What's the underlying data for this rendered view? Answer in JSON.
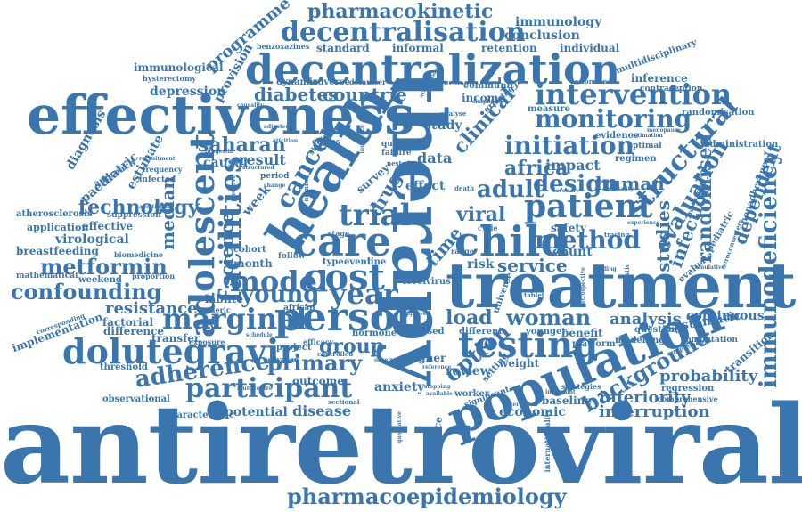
{
  "color": "#3a76ad",
  "words": {
    "antiretroviral": "antiretroviral",
    "therapy": "therapy",
    "treatment": "treatment",
    "effectiveness": "effectiveness",
    "decentralization": "decentralization",
    "health": "health",
    "population": "population",
    "pharmacoepidemiology": "pharmacoepidemiology",
    "dolutegravir": "dolutegravir",
    "person": "person",
    "care": "care",
    "child": "child",
    "patient": "patient",
    "intervention": "intervention",
    "monitoring": "monitoring",
    "adolescent": "adolescent",
    "facilities": "facilities",
    "testing": "testing",
    "immunodeficiency": "immunodeficiency",
    "decentralisation": "decentralisation",
    "pharmacokinetic": "pharmacokinetic",
    "initiation": "initiation",
    "marginal": "marginal",
    "model": "model",
    "cost": "cost",
    "young": "young",
    "year": "year",
    "trial": "trial",
    "participant": "participant",
    "adherence": "adherence",
    "confounding": "confounding",
    "metformin": "metformin",
    "structural": "structural",
    "evaluation": "evaluation",
    "background": "background",
    "woman": "woman",
    "method": "method",
    "adult": "adult",
    "design": "design",
    "africa": "africa",
    "human": "human",
    "cancer": "cancer",
    "saharan": "saharan",
    "technology": "technology",
    "primary": "primary",
    "group": "group",
    "option": "option",
    "randomised": "randomised",
    "dependent": "dependent",
    "infection": "infection",
    "studies": "studies",
    "service": "service",
    "load": "load",
    "viral": "viral",
    "science": "science",
    "median": "median",
    "diabetes": "diabetes",
    "countrie": "countrie",
    "clinical": "clinical",
    "resistance": "resistance",
    "analysis": "analysis",
    "probability": "probability",
    "inferiority": "inferiority",
    "interruption": "interruption",
    "continuous": "continuous",
    "systematic": "systematic",
    "immunology": "immunology",
    "conclusion": "conclusion",
    "programme": "programme",
    "provision": "provision",
    "depression": "depression",
    "immunological": "immunological",
    "virological": "virological",
    "breastfeeding": "breastfeeding",
    "application": "application",
    "effective": "effective",
    "atherosclerosis": "atherosclerosis",
    "diagnosis": "diagnosis",
    "paediatric": "paediatric",
    "estimate": "estimate",
    "standard": "standard",
    "informal": "informal",
    "retention": "retention",
    "individual": "individual",
    "multidisciplinary": "multidisciplinary",
    "inference": "inference",
    "contraception": "contraception",
    "randomisation": "randomisation",
    "administration": "administration",
    "nonadherence": "nonadherence",
    "community": "community",
    "income": "income",
    "study": "study",
    "data": "data",
    "impact": "impact",
    "result": "result",
    "causal": "causal",
    "effect": "effect",
    "survey": "survey",
    "drug": "drug",
    "time": "time",
    "week": "week",
    "month": "month",
    "cohort": "cohort",
    "lablite": "lablite",
    "hormone": "hormone",
    "outcome": "outcome",
    "anxiety": "anxiety",
    "disease": "disease",
    "potential": "potential",
    "economic": "economic",
    "review": "review",
    "weight": "weight",
    "higher": "higher",
    "based": "based",
    "different": "different",
    "younger": "younger",
    "benefit": "benefit",
    "platform": "platform",
    "question": "question",
    "modelling": "modelling",
    "regression": "regression",
    "computation": "computation",
    "transition": "transition",
    "baseline": "baseline",
    "worker": "worker",
    "strategies": "strategies",
    "resource": "resource",
    "assessment": "assessment",
    "observational": "observational",
    "characteristic": "characteristic",
    "threshold": "threshold",
    "transfer": "transfer",
    "factorial": "factorial",
    "difference": "difference",
    "implementation": "implementation",
    "mathematical": "mathematical",
    "weekend": "weekend",
    "proportion": "proportion",
    "biomedicine": "biomedicine",
    "suppression": "suppression",
    "infected": "infected",
    "frequency": "frequency",
    "approach": "approach",
    "safety": "safety",
    "count": "count",
    "risk": "risk",
    "level": "level",
    "virus": "virus",
    "type": "type",
    "event": "event",
    "line": "line",
    "african": "african",
    "generic": "generic",
    "exposure": "exposure",
    "project": "project",
    "efficacy": "efficacy",
    "controlled": "controlled",
    "follow": "follow",
    "period": "period",
    "copies": "copies",
    "quality": "quality",
    "failure": "failure",
    "regimen": "regimen",
    "evidence": "evidence",
    "optimal": "optimal",
    "measure": "measure",
    "growing": "growing",
    "analyse": "analyse",
    "switching": "switching",
    "benzoxazines": "benzoxazines",
    "dynamic": "dynamic",
    "adverse": "adverse",
    "defaulter": "defaulter",
    "performance": "performance",
    "hysterectomy": "hysterectomy",
    "comprehensive": "comprehensive",
    "supplement": "supplement",
    "tracing": "tracing",
    "setting": "setting",
    "universe": "universe",
    "point": "point",
    "range": "range",
    "stage": "stage",
    "death": "death",
    "cycle": "cycle",
    "tablet": "tablet",
    "nested": "nested",
    "shifting": "shifting",
    "sectional": "sectional",
    "activation": "activation",
    "internationality": "internationality",
    "positionality": "positionality",
    "qualitative": "qualitative",
    "significant": "significant",
    "multicentre": "multicentre",
    "interaction": "interaction",
    "available": "available",
    "important": "important",
    "mortality": "mortality",
    "estimation": "estimation",
    "recruitment": "recruitment",
    "additional": "additional",
    "progestin": "progestin",
    "causality": "causality",
    "adjusted": "adjusted",
    "structured": "structured",
    "attrition": "attrition",
    "change": "change",
    "finding": "finding",
    "menopause": "menopause",
    "coronary": "coronary",
    "pediatric": "pediatric",
    "observed": "observed",
    "stopping": "stopping",
    "reference": "reference",
    "similar": "similar",
    "corresponding": "corresponding",
    "replacement": "replacement",
    "seroconverters": "seroconverters",
    "evaluate": "evaluate",
    "cumulative": "cumulative",
    "retrospective": "retrospective",
    "diagnostic": "diagnostic",
    "experience": "experience",
    "simplified": "simplified",
    "acquisition": "acquisition",
    "secondary": "secondary",
    "number": "number",
    "positive": "positive",
    "schedule": "schedule",
    "approved": "approved",
    "incidence": "incidence"
  }
}
